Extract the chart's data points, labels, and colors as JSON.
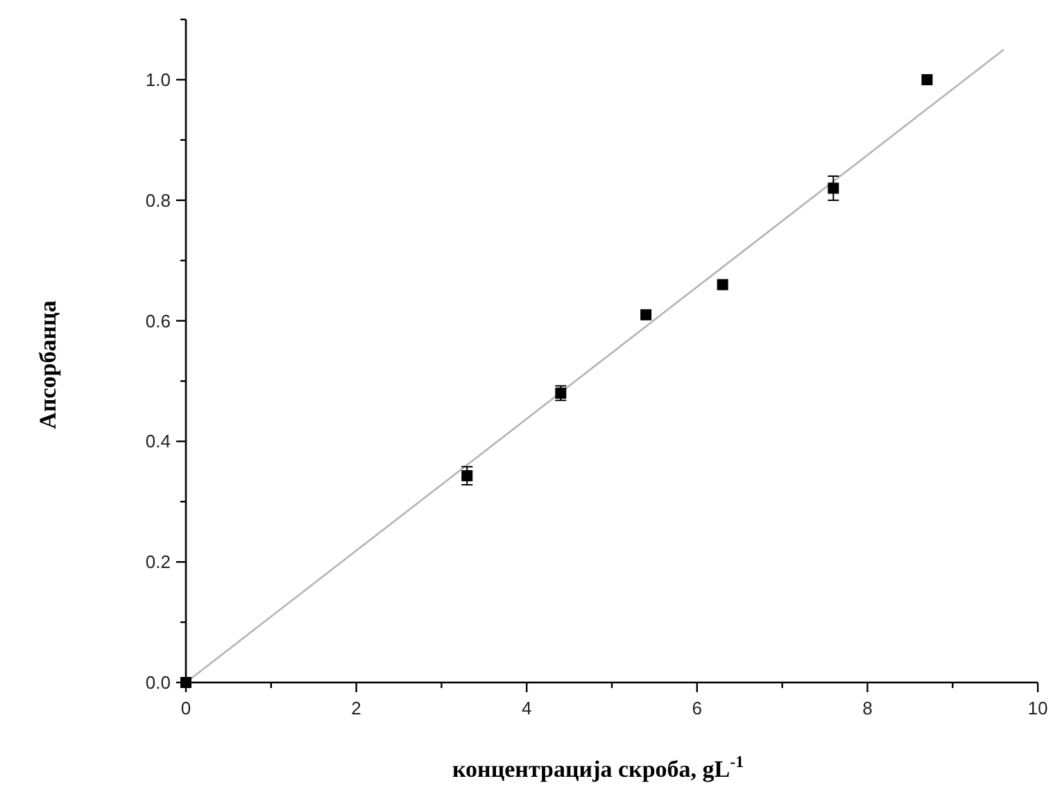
{
  "chart_data": {
    "type": "scatter",
    "xlabel": "концентрација скроба, gL$^{-1}$",
    "ylabel": "Апсорбанца",
    "xlim": [
      0,
      10
    ],
    "ylim": [
      0,
      1.1
    ],
    "xticks": [
      0,
      {
        "value": 1,
        "label": null
      },
      2,
      {
        "value": 3,
        "label": null
      },
      4,
      {
        "value": 5,
        "label": null
      },
      6,
      {
        "value": 7,
        "label": null
      },
      8,
      {
        "value": 9,
        "label": null
      },
      10
    ],
    "yticks": [
      "0.0",
      {
        "value": 0.1,
        "label": null
      },
      {
        "value": 0.2,
        "label": "0.2"
      },
      {
        "value": 0.3,
        "label": null
      },
      {
        "value": 0.4,
        "label": "0.4"
      },
      {
        "value": 0.5,
        "label": null
      },
      {
        "value": 0.6,
        "label": "0.6"
      },
      {
        "value": 0.7,
        "label": null
      },
      {
        "value": 0.8,
        "label": "0.8"
      },
      {
        "value": 0.9,
        "label": null
      },
      {
        "value": 1,
        "label": "1.0"
      },
      {
        "value": 1.1,
        "label": null
      }
    ],
    "grid": false,
    "series": [
      {
        "color": "#000000",
        "marker": "square",
        "x": [
          0,
          3.3,
          4.4,
          5.4,
          6.3,
          7.6,
          8.7
        ],
        "values": [
          0,
          0.343,
          0.48,
          0.61,
          0.66,
          0.82,
          1.0
        ],
        "errors": [
          null,
          0.015,
          0.012,
          null,
          null,
          0.02,
          null
        ]
      },
      {
        "type": "line",
        "color": "#b4b4b4",
        "x": [
          0,
          9.6
        ],
        "values": [
          0,
          1.05
        ],
        "marker": "none",
        "line_style": "solid"
      }
    ]
  }
}
